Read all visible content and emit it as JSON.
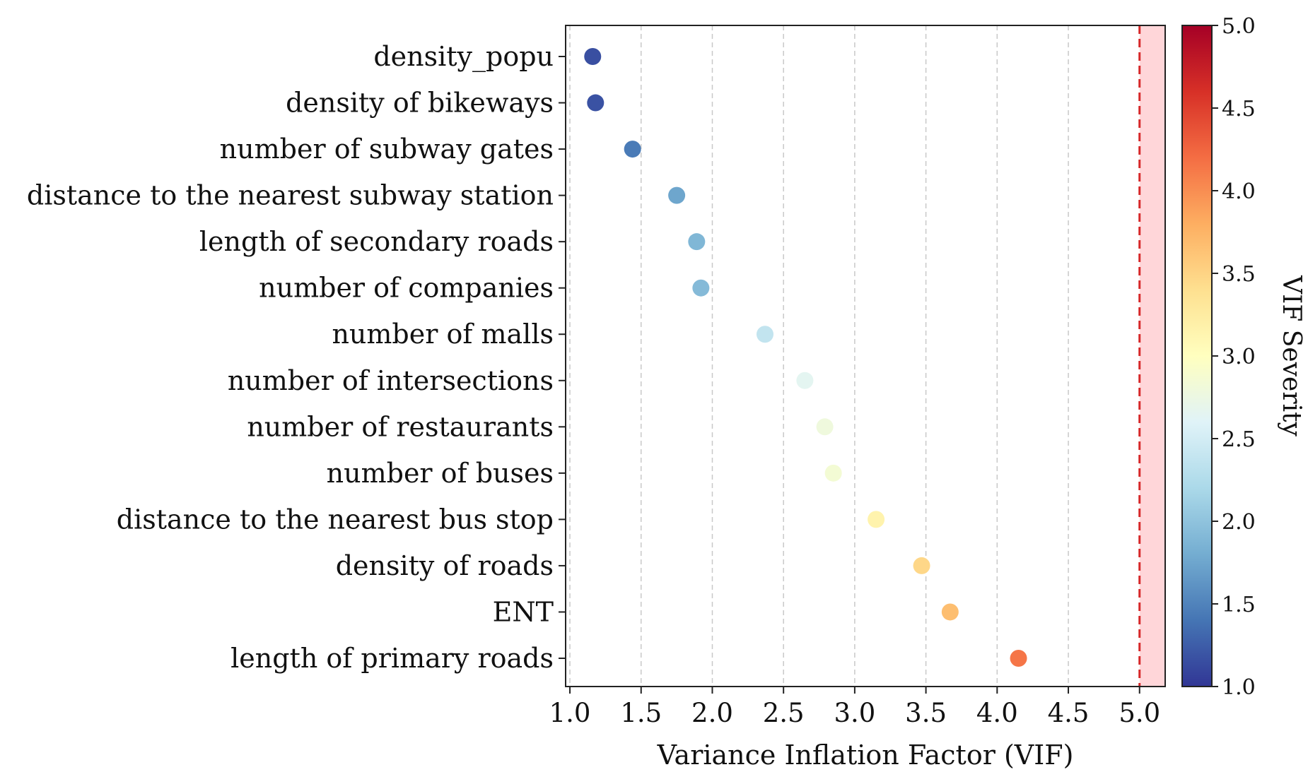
{
  "chart_data": {
    "type": "scatter",
    "title": "",
    "xlabel": "Variance Inflation Factor (VIF)",
    "ylabel": "",
    "xlim": [
      0.97,
      5.18
    ],
    "xticks": [
      1.0,
      1.5,
      2.0,
      2.5,
      3.0,
      3.5,
      4.0,
      4.5,
      5.0
    ],
    "xtick_labels": [
      "1.0",
      "1.5",
      "2.0",
      "2.5",
      "3.0",
      "3.5",
      "4.0",
      "4.5",
      "5.0"
    ],
    "grid": "vertical dashed",
    "threshold": 5.0,
    "categories": [
      "density_popu",
      "density of bikeways",
      "number of subway gates",
      "distance to the nearest subway station",
      "length of secondary roads",
      "number of companies",
      "number of malls",
      "number of intersections",
      "number of restaurants",
      "number of buses",
      "distance to the nearest bus stop",
      "density of roads",
      "ENT",
      "length of primary roads"
    ],
    "values": [
      1.16,
      1.18,
      1.44,
      1.75,
      1.89,
      1.92,
      2.37,
      2.65,
      2.79,
      2.85,
      3.15,
      3.47,
      3.67,
      4.15
    ],
    "colorbar": {
      "label": "VIF Severity",
      "range": [
        1.0,
        5.0
      ],
      "ticks": [
        1.0,
        1.5,
        2.0,
        2.5,
        3.0,
        3.5,
        4.0,
        4.5,
        5.0
      ],
      "tick_labels": [
        "1.0",
        "1.5",
        "2.0",
        "2.5",
        "3.0",
        "3.5",
        "4.0",
        "4.5",
        "5.0"
      ],
      "colormap": "RdYlBu_r",
      "stops": [
        "#313695",
        "#4575b4",
        "#74add1",
        "#abd9e9",
        "#e0f3f8",
        "#ffffbf",
        "#fee090",
        "#fdae61",
        "#f46d43",
        "#d73027",
        "#a50026"
      ]
    },
    "threshold_color": "#d62728",
    "threshold_fill": "#ffd6d9"
  }
}
